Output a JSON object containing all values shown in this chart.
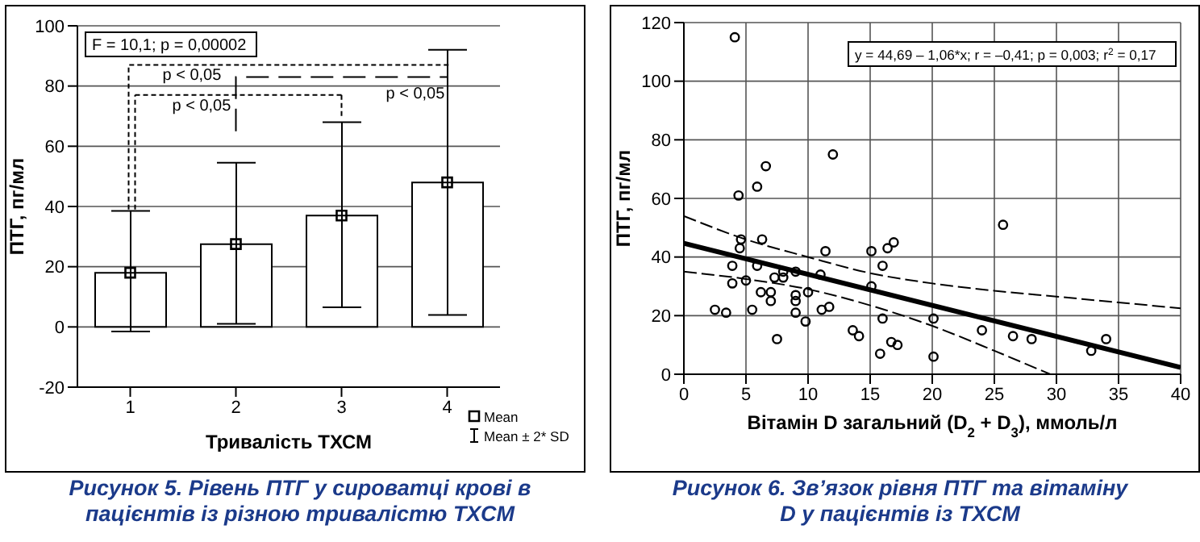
{
  "chart_data": [
    {
      "type": "bar",
      "title": "Рисунок 5. Рівень ПТГ у сироватці крові в пацієнтів із різною тривалістю ТХСМ",
      "xlabel": "Тривалість ТХСМ",
      "ylabel": "ПТГ, пг/мл",
      "categories": [
        "1",
        "2",
        "3",
        "4"
      ],
      "series": [
        {
          "type": "bar",
          "color": "#ffffff",
          "values": [
            18,
            27.5,
            37,
            48
          ],
          "errors": [
            [
              -1.5,
              38.5
            ],
            [
              1,
              54.5
            ],
            [
              6.5,
              68
            ],
            [
              4,
              92
            ]
          ]
        },
        {
          "type": "scatter",
          "name": "Mean",
          "color": "#000000",
          "marker": "square",
          "x": [
            "1",
            "2",
            "3",
            "4"
          ],
          "values": [
            18,
            27.5,
            37,
            48
          ]
        }
      ],
      "ylim": [
        -20,
        100
      ],
      "yticks": [
        -20,
        0,
        20,
        40,
        60,
        80,
        100
      ],
      "grid": "y",
      "legend": "bottom right",
      "annotations": [
        "F = 10,1; p = 0,00002",
        "p < 0,05",
        "p < 0,05",
        "p < 0,05",
        "Mean ± 2* SD"
      ]
    },
    {
      "type": "scatter",
      "title": "Рисунок 6. Зв’язок рівня ПТГ та вітаміну D у пацієнтів із ТХСМ",
      "xlabel": "Вітамін D загальний (D$_{2}$ + D$_{3}$), ммоль/л",
      "ylabel": "ПТГ, пг/мл",
      "series": [
        {
          "type": "scatter",
          "color": "#000000",
          "marker": "circle",
          "x": [
            4.1,
            4.4,
            5.9,
            6.6,
            12.0,
            25.7,
            4.6,
            4.5,
            6.3,
            3.9,
            3.9,
            5.0,
            5.9,
            7.3,
            8.0,
            8.0,
            9.0,
            6.2,
            7.0,
            7.0,
            9.0,
            9.0,
            9.0,
            10.0,
            9.8,
            5.5,
            2.5,
            3.4,
            7.5,
            11.0,
            11.4,
            11.1,
            11.7,
            13.6,
            14.1,
            15.1,
            15.1,
            16.0,
            16.4,
            16.9,
            16.0,
            16.7,
            17.2,
            15.8,
            20.1,
            20.1,
            24.0,
            26.5,
            28.0,
            32.8,
            34.0
          ],
          "values": [
            115,
            61,
            64,
            71,
            75,
            51,
            46,
            43,
            46,
            37,
            31,
            32,
            37,
            33,
            35,
            33,
            35,
            28,
            28,
            25,
            27,
            25,
            21,
            28,
            18,
            22,
            22,
            21,
            12,
            34,
            42,
            22,
            23,
            15,
            13,
            42,
            30,
            37,
            43,
            45,
            19,
            11,
            10,
            7,
            19,
            6,
            15,
            13,
            12,
            8,
            12
          ]
        },
        {
          "type": "line",
          "color": "#000000",
          "line_style": "solid",
          "x": [
            0,
            40
          ],
          "values": [
            44.7,
            2.3
          ]
        },
        {
          "type": "line",
          "color": "#000000",
          "line_style": "dashed",
          "x": [
            0,
            5,
            10,
            15,
            20,
            25,
            30,
            35,
            40
          ],
          "values": [
            54,
            46,
            40,
            34.5,
            31,
            28.5,
            26.5,
            24.5,
            22.5
          ]
        },
        {
          "type": "line",
          "color": "#000000",
          "line_style": "dashed",
          "x": [
            0,
            5,
            10,
            15,
            20,
            25,
            29.5
          ],
          "values": [
            35,
            32.5,
            29,
            23.5,
            16.5,
            8,
            0
          ]
        }
      ],
      "xlim": [
        0,
        40
      ],
      "xticks": [
        0,
        5,
        10,
        15,
        20,
        25,
        30,
        35,
        40
      ],
      "ylim": [
        0,
        120
      ],
      "yticks": [
        0,
        20,
        40,
        60,
        80,
        100,
        120
      ],
      "grid": true,
      "annotations": [
        "y = 44,69 – 1,06*x;  r = –0,41; p = 0,003; r$^{2}$ = 0,17"
      ]
    }
  ]
}
